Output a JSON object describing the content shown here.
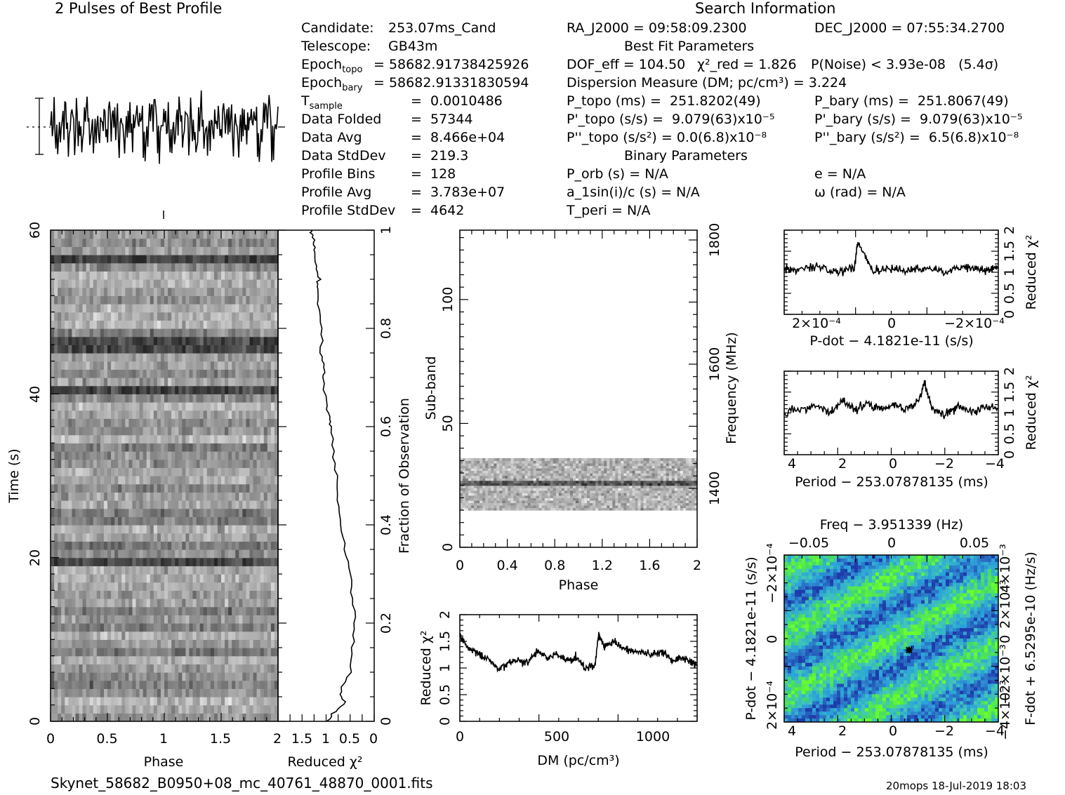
{
  "header": {
    "profile_title": "2 Pulses of Best Profile",
    "search_title": "Search Information",
    "best_fit_title": "Best Fit Parameters",
    "binary_title": "Binary Parameters",
    "filename": "Skynet_58682_B0950+08_mc_40761_48870_0001.fits",
    "stamp": "20mops 18-Jul-2019 18:03"
  },
  "candidate_info": [
    {
      "key": "Candidate:",
      "val": "253.07ms_Cand"
    },
    {
      "key": "Telescope:",
      "val": "GB43m"
    },
    {
      "key": "Epoch_topo",
      "val": "= 58682.91738425926"
    },
    {
      "key": "Epoch_bary",
      "val": "= 58682.91331830594"
    },
    {
      "key": "T_sample",
      "val": "=  0.0010486"
    },
    {
      "key": "Data Folded",
      "val": "=  57344"
    },
    {
      "key": "Data Avg",
      "val": "=  8.466e+04"
    },
    {
      "key": "Data StdDev",
      "val": "=  219.3"
    },
    {
      "key": "Profile Bins",
      "val": "=  128"
    },
    {
      "key": "Profile Avg",
      "val": "=  3.783e+07"
    },
    {
      "key": "Profile StdDev",
      "val": "=  4642"
    }
  ],
  "search_info": {
    "ra": "RA_J2000 = 09:58:09.2300",
    "dec": "DEC_J2000 = 07:55:34.2700",
    "dof": "DOF_eff = 104.50",
    "chi2": "χ²_red = 1.826",
    "pnoise": "P(Noise) < 3.93e-08   (5.4σ)",
    "dm": "Dispersion Measure (DM; pc/cm³) = 3.224",
    "p_topo": "P_topo (ms) =  251.8202(49)",
    "p_bary": "P_bary (ms) =  251.8067(49)",
    "pd_topo": "P'_topo (s/s) =  9.079(63)x10⁻⁵",
    "pd_bary": "P'_bary (s/s) =  9.079(63)x10⁻⁵",
    "pdd_topo": "P''_topo (s/s²) = 0.0(6.8)x10⁻⁸",
    "pdd_bary": "P''_bary (s/s²) =  6.5(6.8)x10⁻⁸",
    "porb": "P_orb (s) = N/A",
    "e": "e = N/A",
    "a1": "a_1sin(i)/c (s) = N/A",
    "omega": "ω (rad) = N/A",
    "tperi": "T_peri = N/A"
  },
  "panels": {
    "phase_time": {
      "xlabel": "Phase",
      "ylabel": "Time (s)",
      "xticks": [
        "0",
        "0.5",
        "1",
        "1.5",
        "2"
      ],
      "yticks": [
        "0",
        "20",
        "40",
        "60"
      ]
    },
    "chi_time": {
      "xlabel": "Reduced χ²",
      "ylabel": "Fraction of Observation",
      "xticks": [
        "1.5",
        "1",
        "0.5",
        "0"
      ],
      "yticks": [
        "0",
        "0.2",
        "0.4",
        "0.6",
        "0.8",
        "1"
      ]
    },
    "subband": {
      "xlabel": "Phase",
      "ylabel": "Sub-band",
      "y2label": "Frequency (MHz)",
      "xticks": [
        "0",
        "0.4",
        "0.8",
        "1.2",
        "1.6",
        "2"
      ],
      "yticks": [
        "0",
        "50",
        "100"
      ],
      "y2ticks": [
        "1400",
        "1600",
        "1800"
      ]
    },
    "dm": {
      "xlabel": "DM (pc/cm³)",
      "ylabel": "Reduced χ²",
      "xticks": [
        "0",
        "500",
        "1000"
      ],
      "yticks": [
        "0",
        "0.5",
        "1",
        "1.5",
        "2"
      ]
    },
    "pdot": {
      "xlabel": "P-dot − 4.1821e-11 (s/s)",
      "ylabel": "Reduced χ²",
      "xticks": [
        "2×10⁻⁴",
        "0",
        "−2×10⁻⁴"
      ],
      "yticks": [
        "0",
        "0.5",
        "1",
        "1.5",
        "2"
      ]
    },
    "period": {
      "xlabel": "Period − 253.07878135 (ms)",
      "ylabel": "Reduced χ²",
      "xticks": [
        "4",
        "2",
        "0",
        "−2",
        "−4"
      ],
      "yticks": [
        "0",
        "0.5",
        "1",
        "1.5",
        "2"
      ]
    },
    "ppdot": {
      "title": "Freq − 3.951339 (Hz)",
      "xlabel": "Period − 253.07878135 (ms)",
      "ylabel": "P-dot − 4.1821e-11 (s/s)",
      "y2label": "F-dot + 6.5295e-10 (Hz/s)",
      "xticks": [
        "4",
        "2",
        "0",
        "−2",
        "−4"
      ],
      "x2ticks": [
        "−0.05",
        "0",
        "0.05"
      ],
      "yticks": [
        "2×10⁻⁴",
        "0",
        "−2×10⁻⁴"
      ],
      "y2ticks": [
        "−4×10⁻³",
        "−2×10⁻³",
        "0",
        "2×10⁻³",
        "4×10⁻³"
      ]
    }
  },
  "chart_data": [
    {
      "type": "line",
      "name_id": "profile",
      "title": "2 Pulses of Best Profile",
      "x": [
        0,
        2
      ],
      "note": "two repetitions of folded pulse profile (noise-like)"
    },
    {
      "type": "heatmap",
      "name_id": "phase_time",
      "xlabel": "Phase",
      "ylabel": "Time (s)",
      "xlim": [
        0,
        2
      ],
      "ylim": [
        0,
        60
      ]
    },
    {
      "type": "line",
      "name_id": "chi_time",
      "xlabel": "Reduced χ²",
      "ylabel": "Fraction of Observation",
      "xlim": [
        2,
        0
      ],
      "ylim": [
        0,
        1
      ],
      "x": [
        1.0,
        0.8,
        0.6,
        0.7,
        0.5,
        0.45,
        0.4,
        0.45,
        0.5,
        0.6,
        0.7,
        0.75,
        0.8,
        0.85,
        0.9,
        0.95,
        1.0,
        1.05,
        1.05,
        1.1,
        1.1,
        1.15,
        1.2,
        1.15,
        1.2,
        1.25,
        1.25,
        1.3,
        1.3
      ],
      "y": [
        0.0,
        0.02,
        0.04,
        0.06,
        0.1,
        0.15,
        0.2,
        0.25,
        0.3,
        0.35,
        0.4,
        0.45,
        0.5,
        0.55,
        0.6,
        0.62,
        0.65,
        0.7,
        0.72,
        0.75,
        0.8,
        0.85,
        0.88,
        0.9,
        0.92,
        0.95,
        0.97,
        0.99,
        1.0
      ]
    },
    {
      "type": "heatmap",
      "name_id": "subband",
      "xlabel": "Phase",
      "ylabel": "Sub-band",
      "xlim": [
        0,
        2
      ],
      "ylim": [
        0,
        128
      ],
      "filled_subbands": [
        15,
        35
      ]
    },
    {
      "type": "line",
      "name_id": "dm",
      "xlabel": "DM (pc/cm³)",
      "ylabel": "Reduced χ²",
      "xlim": [
        0,
        1230
      ],
      "ylim": [
        0,
        2
      ],
      "x": [
        0,
        50,
        100,
        150,
        200,
        250,
        300,
        350,
        400,
        450,
        500,
        550,
        600,
        650,
        700,
        720,
        750,
        800,
        850,
        900,
        950,
        1000,
        1050,
        1100,
        1150,
        1200,
        1230
      ],
      "y": [
        1.6,
        1.35,
        1.25,
        1.15,
        0.95,
        1.1,
        1.15,
        1.1,
        1.3,
        1.2,
        1.25,
        1.15,
        1.2,
        1.0,
        1.05,
        1.65,
        1.4,
        1.5,
        1.35,
        1.3,
        1.3,
        1.25,
        1.3,
        1.15,
        1.2,
        1.1,
        1.05
      ]
    },
    {
      "type": "line",
      "name_id": "pdot",
      "xlabel": "P-dot − 4.1821e-11 (s/s)",
      "ylabel": "Reduced χ²",
      "xlim": [
        0.00029,
        -0.00029
      ],
      "ylim": [
        0,
        2
      ],
      "x": [
        0.00029,
        0.00025,
        0.0002,
        0.00015,
        0.0001,
        9e-05,
        5e-05,
        0,
        -5e-05,
        -0.0001,
        -0.00015,
        -0.0002,
        -0.00025,
        -0.00029
      ],
      "y": [
        1.1,
        1.05,
        1.15,
        1.0,
        1.1,
        1.75,
        1.0,
        1.1,
        1.05,
        1.1,
        1.0,
        1.15,
        1.05,
        1.1
      ]
    },
    {
      "type": "line",
      "name_id": "period",
      "xlabel": "Period − 253.07878135 (ms)",
      "ylabel": "Reduced χ²",
      "xlim": [
        4.3,
        -4.1
      ],
      "ylim": [
        0,
        2
      ],
      "x": [
        4.3,
        3.5,
        3,
        2.5,
        2,
        1.5,
        1,
        0.5,
        0,
        -0.5,
        -1,
        -1.2,
        -1.5,
        -2,
        -2.5,
        -3,
        -3.5,
        -4.1
      ],
      "y": [
        1.0,
        1.1,
        1.2,
        1.0,
        1.3,
        1.1,
        1.2,
        1.1,
        1.2,
        1.1,
        1.3,
        1.75,
        1.1,
        0.95,
        1.15,
        1.05,
        1.1,
        1.2
      ]
    },
    {
      "type": "heatmap",
      "name_id": "ppdot",
      "title": "Freq − 3.951339 (Hz)",
      "xlabel": "Period − 253.07878135 (ms)",
      "ylabel": "P-dot − 4.1821e-11 (s/s)",
      "xlim": [
        4.3,
        -4.1
      ],
      "ylim": [
        0.00029,
        -0.00029
      ],
      "best_fit_marker": {
        "x": -0.6,
        "y": 4e-05
      }
    }
  ]
}
